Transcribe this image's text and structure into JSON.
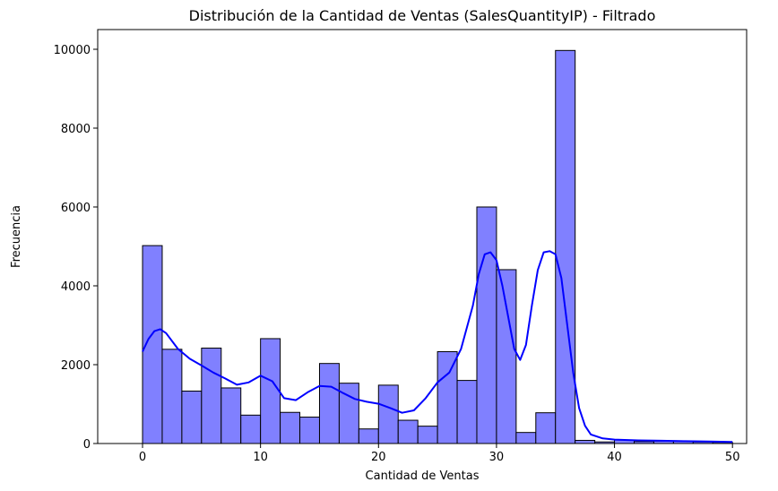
{
  "chart_data": {
    "type": "bar",
    "subtype": "histogram-with-kde",
    "title": "Distribución de la Cantidad de Ventas (SalesQuantityIP) - Filtrado",
    "xlabel": "Cantidad de Ventas",
    "ylabel": "Frecuencia",
    "xlim": [
      -3.8,
      51.2
    ],
    "ylim": [
      0,
      10500
    ],
    "xticks": [
      0,
      10,
      20,
      30,
      40,
      50
    ],
    "xtick_labels": [
      "0",
      "10",
      "20",
      "30",
      "40",
      "50"
    ],
    "yticks": [
      0,
      2000,
      4000,
      6000,
      8000,
      10000
    ],
    "ytick_labels": [
      "0",
      "2000",
      "4000",
      "6000",
      "8000",
      "10000"
    ],
    "bin_edges": [
      0,
      1.667,
      3.333,
      5,
      6.667,
      8.333,
      10,
      11.667,
      13.333,
      15,
      16.667,
      18.333,
      20,
      21.667,
      23.333,
      25,
      26.667,
      28.333,
      30,
      31.667,
      33.333,
      35,
      36.667,
      38.333,
      40,
      41.667,
      43.333,
      45,
      46.667,
      48.333,
      50
    ],
    "counts": [
      5020,
      2390,
      1330,
      2420,
      1410,
      720,
      2660,
      790,
      670,
      2030,
      1530,
      370,
      1480,
      590,
      440,
      2330,
      1600,
      6000,
      4410,
      280,
      780,
      9970,
      80,
      40,
      90,
      50,
      60,
      60,
      40,
      30
    ],
    "bar_color": "#8080ff",
    "bar_edge_color": "#000000",
    "kde": {
      "color": "#0000ff",
      "x": [
        0,
        0.5,
        1,
        1.5,
        2,
        3,
        4,
        5,
        6,
        7,
        8,
        9,
        10,
        11,
        12,
        13,
        14,
        15,
        16,
        17,
        18,
        19,
        20,
        21,
        22,
        23,
        24,
        25,
        26,
        27,
        28,
        28.5,
        29,
        29.5,
        30,
        30.5,
        31,
        31.5,
        32,
        32.5,
        33,
        33.5,
        34,
        34.5,
        35,
        35.5,
        36,
        36.5,
        37,
        37.5,
        38,
        39,
        40,
        42,
        44,
        46,
        48,
        50
      ],
      "y": [
        2330,
        2650,
        2850,
        2900,
        2800,
        2400,
        2150,
        1980,
        1800,
        1650,
        1490,
        1550,
        1720,
        1580,
        1150,
        1100,
        1300,
        1460,
        1440,
        1280,
        1130,
        1060,
        1010,
        900,
        780,
        840,
        1150,
        1550,
        1800,
        2400,
        3500,
        4300,
        4800,
        4850,
        4650,
        4000,
        3200,
        2400,
        2120,
        2500,
        3500,
        4400,
        4850,
        4880,
        4800,
        4200,
        3000,
        1800,
        900,
        450,
        230,
        130,
        100,
        80,
        70,
        60,
        50,
        40
      ]
    }
  }
}
